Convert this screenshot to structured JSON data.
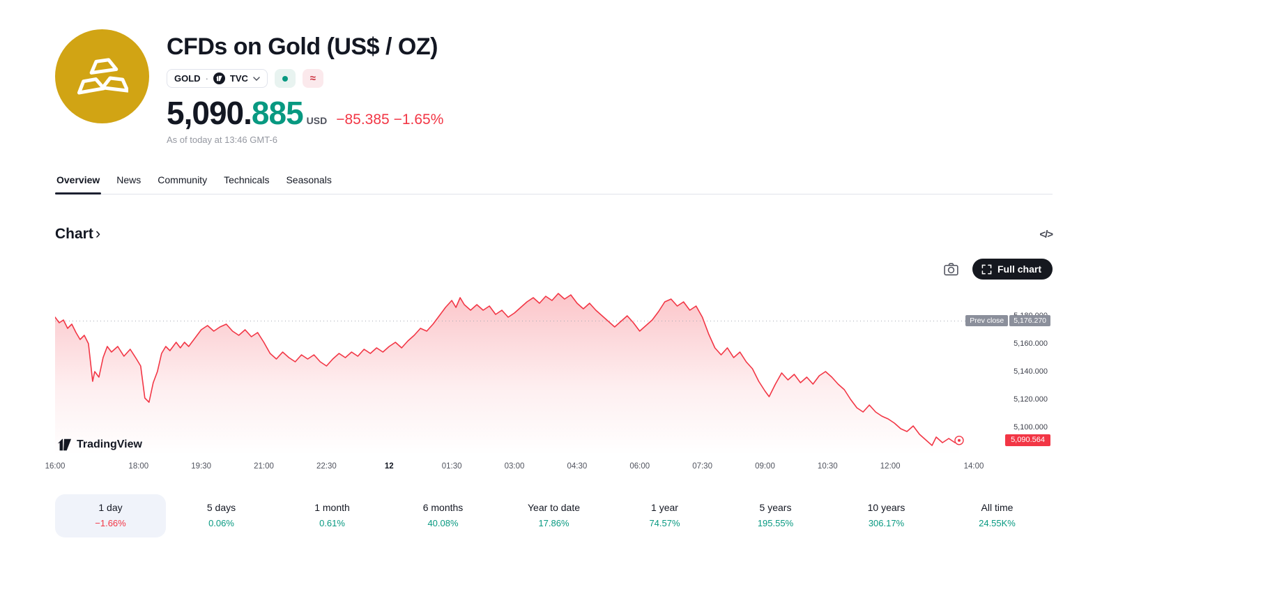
{
  "colors": {
    "down": "#f23645",
    "up": "#089981",
    "gold_brand": "#d1a414",
    "tag_grey": "#8b8f9b"
  },
  "header": {
    "title": "CFDs on Gold (US$ / OZ)",
    "symbol": "GOLD",
    "dot": "·",
    "exchange": "TVC",
    "approx_symbol": "≈",
    "price_int": "5,090.",
    "price_frac": "885",
    "currency": "USD",
    "change_abs": "−85.385",
    "change_pct": "−1.65%",
    "as_of": "As of today at 13:46 GMT-6"
  },
  "tabs": [
    {
      "label": "Overview",
      "active": true
    },
    {
      "label": "News",
      "active": false
    },
    {
      "label": "Community",
      "active": false
    },
    {
      "label": "Technicals",
      "active": false
    },
    {
      "label": "Seasonals",
      "active": false
    }
  ],
  "section": {
    "title": "Chart",
    "chevron": "›"
  },
  "icons": {
    "code": "</>"
  },
  "toolbar": {
    "full_chart": "Full chart"
  },
  "watermark": {
    "text": "TradingView"
  },
  "chart_data": {
    "type": "area",
    "title": "CFDs on Gold (US$ / OZ), 1 day",
    "t_max": 22,
    "price_min": 5080,
    "price_max": 5200,
    "grid": false,
    "line_color": "#f23645",
    "prev_close": {
      "label": "Prev close",
      "value": "5,176.270",
      "price": 5176.27
    },
    "last_price": {
      "value": "5,090.564",
      "price": 5090.564
    },
    "y_ticks": [
      {
        "label": "5,180.000",
        "price": 5180
      },
      {
        "label": "5,160.000",
        "price": 5160
      },
      {
        "label": "5,140.000",
        "price": 5140
      },
      {
        "label": "5,120.000",
        "price": 5120
      },
      {
        "label": "5,100.000",
        "price": 5100
      }
    ],
    "x_ticks": [
      {
        "label": "16:00",
        "t": 0,
        "emphasis": false
      },
      {
        "label": "18:00",
        "t": 2,
        "emphasis": false
      },
      {
        "label": "19:30",
        "t": 3.5,
        "emphasis": false
      },
      {
        "label": "21:00",
        "t": 5,
        "emphasis": false
      },
      {
        "label": "22:30",
        "t": 6.5,
        "emphasis": false
      },
      {
        "label": "12",
        "t": 8,
        "emphasis": true
      },
      {
        "label": "01:30",
        "t": 9.5,
        "emphasis": false
      },
      {
        "label": "03:00",
        "t": 11,
        "emphasis": false
      },
      {
        "label": "04:30",
        "t": 12.5,
        "emphasis": false
      },
      {
        "label": "06:00",
        "t": 14,
        "emphasis": false
      },
      {
        "label": "07:30",
        "t": 15.5,
        "emphasis": false
      },
      {
        "label": "09:00",
        "t": 17,
        "emphasis": false
      },
      {
        "label": "10:30",
        "t": 18.5,
        "emphasis": false
      },
      {
        "label": "12:00",
        "t": 20,
        "emphasis": false
      },
      {
        "label": "14:00",
        "t": 22,
        "emphasis": false
      }
    ],
    "points": [
      [
        0.0,
        5179
      ],
      [
        0.1,
        5175
      ],
      [
        0.2,
        5177
      ],
      [
        0.3,
        5171
      ],
      [
        0.4,
        5174
      ],
      [
        0.5,
        5168
      ],
      [
        0.6,
        5163
      ],
      [
        0.7,
        5166
      ],
      [
        0.8,
        5160
      ],
      [
        0.9,
        5133
      ],
      [
        0.95,
        5140
      ],
      [
        1.05,
        5136
      ],
      [
        1.15,
        5150
      ],
      [
        1.25,
        5158
      ],
      [
        1.35,
        5154
      ],
      [
        1.5,
        5158
      ],
      [
        1.65,
        5151
      ],
      [
        1.8,
        5156
      ],
      [
        1.95,
        5149
      ],
      [
        2.05,
        5144
      ],
      [
        2.15,
        5121
      ],
      [
        2.25,
        5118
      ],
      [
        2.35,
        5132
      ],
      [
        2.45,
        5140
      ],
      [
        2.55,
        5153
      ],
      [
        2.65,
        5158
      ],
      [
        2.75,
        5155
      ],
      [
        2.9,
        5161
      ],
      [
        3.0,
        5157
      ],
      [
        3.1,
        5161
      ],
      [
        3.2,
        5158
      ],
      [
        3.35,
        5164
      ],
      [
        3.5,
        5170
      ],
      [
        3.65,
        5173
      ],
      [
        3.8,
        5169
      ],
      [
        3.95,
        5172
      ],
      [
        4.1,
        5174
      ],
      [
        4.25,
        5169
      ],
      [
        4.4,
        5166
      ],
      [
        4.55,
        5170
      ],
      [
        4.7,
        5165
      ],
      [
        4.85,
        5168
      ],
      [
        5.0,
        5161
      ],
      [
        5.15,
        5153
      ],
      [
        5.3,
        5149
      ],
      [
        5.45,
        5154
      ],
      [
        5.6,
        5150
      ],
      [
        5.75,
        5147
      ],
      [
        5.9,
        5152
      ],
      [
        6.05,
        5149
      ],
      [
        6.2,
        5152
      ],
      [
        6.35,
        5147
      ],
      [
        6.5,
        5144
      ],
      [
        6.65,
        5149
      ],
      [
        6.8,
        5153
      ],
      [
        6.95,
        5150
      ],
      [
        7.1,
        5154
      ],
      [
        7.25,
        5151
      ],
      [
        7.4,
        5156
      ],
      [
        7.55,
        5153
      ],
      [
        7.7,
        5157
      ],
      [
        7.85,
        5154
      ],
      [
        8.0,
        5158
      ],
      [
        8.15,
        5161
      ],
      [
        8.3,
        5157
      ],
      [
        8.45,
        5162
      ],
      [
        8.6,
        5166
      ],
      [
        8.75,
        5171
      ],
      [
        8.9,
        5169
      ],
      [
        9.05,
        5174
      ],
      [
        9.2,
        5180
      ],
      [
        9.35,
        5186
      ],
      [
        9.5,
        5191
      ],
      [
        9.6,
        5186
      ],
      [
        9.7,
        5193
      ],
      [
        9.8,
        5188
      ],
      [
        9.95,
        5184
      ],
      [
        10.1,
        5188
      ],
      [
        10.25,
        5184
      ],
      [
        10.4,
        5187
      ],
      [
        10.55,
        5181
      ],
      [
        10.7,
        5184
      ],
      [
        10.85,
        5179
      ],
      [
        11.0,
        5182
      ],
      [
        11.15,
        5186
      ],
      [
        11.3,
        5190
      ],
      [
        11.45,
        5193
      ],
      [
        11.6,
        5189
      ],
      [
        11.75,
        5194
      ],
      [
        11.9,
        5191
      ],
      [
        12.05,
        5196
      ],
      [
        12.2,
        5192
      ],
      [
        12.35,
        5195
      ],
      [
        12.5,
        5189
      ],
      [
        12.65,
        5185
      ],
      [
        12.8,
        5189
      ],
      [
        12.95,
        5184
      ],
      [
        13.1,
        5180
      ],
      [
        13.25,
        5176
      ],
      [
        13.4,
        5172
      ],
      [
        13.55,
        5176
      ],
      [
        13.7,
        5180
      ],
      [
        13.85,
        5175
      ],
      [
        14.0,
        5169
      ],
      [
        14.15,
        5173
      ],
      [
        14.3,
        5177
      ],
      [
        14.45,
        5183
      ],
      [
        14.6,
        5190
      ],
      [
        14.75,
        5192
      ],
      [
        14.9,
        5187
      ],
      [
        15.05,
        5190
      ],
      [
        15.2,
        5184
      ],
      [
        15.35,
        5187
      ],
      [
        15.5,
        5179
      ],
      [
        15.65,
        5167
      ],
      [
        15.8,
        5157
      ],
      [
        15.95,
        5152
      ],
      [
        16.1,
        5157
      ],
      [
        16.25,
        5150
      ],
      [
        16.4,
        5154
      ],
      [
        16.55,
        5147
      ],
      [
        16.7,
        5142
      ],
      [
        16.85,
        5133
      ],
      [
        17.0,
        5126
      ],
      [
        17.1,
        5122
      ],
      [
        17.25,
        5131
      ],
      [
        17.4,
        5139
      ],
      [
        17.55,
        5134
      ],
      [
        17.7,
        5138
      ],
      [
        17.85,
        5132
      ],
      [
        18.0,
        5136
      ],
      [
        18.15,
        5131
      ],
      [
        18.3,
        5137
      ],
      [
        18.45,
        5140
      ],
      [
        18.6,
        5136
      ],
      [
        18.75,
        5131
      ],
      [
        18.9,
        5127
      ],
      [
        19.05,
        5120
      ],
      [
        19.2,
        5114
      ],
      [
        19.35,
        5111
      ],
      [
        19.5,
        5116
      ],
      [
        19.65,
        5111
      ],
      [
        19.8,
        5108
      ],
      [
        19.95,
        5106
      ],
      [
        20.1,
        5103
      ],
      [
        20.25,
        5099
      ],
      [
        20.4,
        5097
      ],
      [
        20.55,
        5101
      ],
      [
        20.7,
        5095
      ],
      [
        20.85,
        5091
      ],
      [
        21.0,
        5087
      ],
      [
        21.1,
        5093
      ],
      [
        21.25,
        5089
      ],
      [
        21.4,
        5092
      ],
      [
        21.55,
        5089
      ],
      [
        21.65,
        5090.6
      ]
    ]
  },
  "ranges": [
    {
      "label": "1 day",
      "change": "−1.66%",
      "direction": "down",
      "active": true
    },
    {
      "label": "5 days",
      "change": "0.06%",
      "direction": "up",
      "active": false
    },
    {
      "label": "1 month",
      "change": "0.61%",
      "direction": "up",
      "active": false
    },
    {
      "label": "6 months",
      "change": "40.08%",
      "direction": "up",
      "active": false
    },
    {
      "label": "Year to date",
      "change": "17.86%",
      "direction": "up",
      "active": false
    },
    {
      "label": "1 year",
      "change": "74.57%",
      "direction": "up",
      "active": false
    },
    {
      "label": "5 years",
      "change": "195.55%",
      "direction": "up",
      "active": false
    },
    {
      "label": "10 years",
      "change": "306.17%",
      "direction": "up",
      "active": false
    },
    {
      "label": "All time",
      "change": "24.55K%",
      "direction": "up",
      "active": false
    }
  ]
}
